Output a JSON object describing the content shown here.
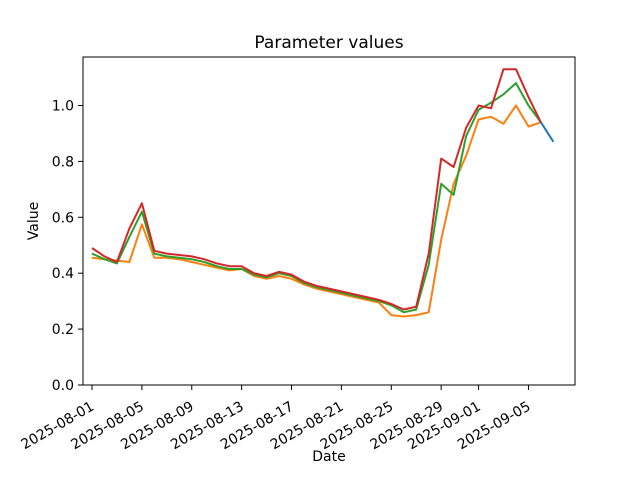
{
  "figure": {
    "title": "Parameter values",
    "xlabel": "Date",
    "ylabel": "Value"
  },
  "chart_data": {
    "type": "line",
    "title": "Parameter values",
    "xlabel": "Date",
    "ylabel": "Value",
    "grid": false,
    "legend": null,
    "ylim": [
      0.0,
      1.17
    ],
    "x_tick_rotation": 30,
    "x_ticks": [
      "2025-08-01",
      "2025-08-05",
      "2025-08-09",
      "2025-08-13",
      "2025-08-17",
      "2025-08-21",
      "2025-08-25",
      "2025-08-29",
      "2025-09-01",
      "2025-09-05"
    ],
    "y_ticks": [
      "0.0",
      "0.2",
      "0.4",
      "0.6",
      "0.8",
      "1.0"
    ],
    "x_dates": [
      "2025-08-01",
      "2025-08-02",
      "2025-08-03",
      "2025-08-04",
      "2025-08-05",
      "2025-08-06",
      "2025-08-07",
      "2025-08-08",
      "2025-08-09",
      "2025-08-10",
      "2025-08-11",
      "2025-08-12",
      "2025-08-13",
      "2025-08-14",
      "2025-08-15",
      "2025-08-16",
      "2025-08-17",
      "2025-08-18",
      "2025-08-19",
      "2025-08-20",
      "2025-08-21",
      "2025-08-22",
      "2025-08-23",
      "2025-08-24",
      "2025-08-25",
      "2025-08-26",
      "2025-08-27",
      "2025-08-28",
      "2025-08-29",
      "2025-08-30",
      "2025-08-31",
      "2025-09-01",
      "2025-09-02",
      "2025-09-03",
      "2025-09-04",
      "2025-09-05",
      "2025-09-06"
    ],
    "series": [
      {
        "name": "orange-series",
        "color": "#ff7f0e",
        "values": [
          0.455,
          0.45,
          0.445,
          0.44,
          0.575,
          0.455,
          0.455,
          0.45,
          0.44,
          0.43,
          0.42,
          0.41,
          0.415,
          0.39,
          0.38,
          0.39,
          0.38,
          0.36,
          0.345,
          0.335,
          0.325,
          0.315,
          0.305,
          0.295,
          0.25,
          0.245,
          0.25,
          0.26,
          0.52,
          0.72,
          0.82,
          0.95,
          0.96,
          0.935,
          1.0,
          0.925,
          0.94
        ]
      },
      {
        "name": "green-series",
        "color": "#2ca02c",
        "values": [
          0.47,
          0.45,
          0.435,
          0.53,
          0.62,
          0.47,
          0.46,
          0.455,
          0.45,
          0.44,
          0.425,
          0.415,
          0.415,
          0.395,
          0.385,
          0.4,
          0.39,
          0.365,
          0.35,
          0.34,
          0.33,
          0.32,
          0.31,
          0.3,
          0.285,
          0.26,
          0.27,
          0.43,
          0.72,
          0.68,
          0.89,
          0.985,
          1.01,
          1.04,
          1.08,
          1.0,
          0.94
        ]
      },
      {
        "name": "red-series",
        "color": "#d62728",
        "values": [
          0.49,
          0.46,
          0.44,
          0.56,
          0.65,
          0.48,
          0.47,
          0.465,
          0.46,
          0.45,
          0.435,
          0.425,
          0.425,
          0.4,
          0.39,
          0.405,
          0.395,
          0.37,
          0.355,
          0.345,
          0.335,
          0.325,
          0.315,
          0.305,
          0.29,
          0.27,
          0.28,
          0.47,
          0.81,
          0.78,
          0.92,
          1.0,
          0.99,
          1.13,
          1.13,
          1.03,
          0.94
        ]
      },
      {
        "name": "blue-series",
        "color": "#1f77b4",
        "dates": [
          "2025-09-06",
          "2025-09-07"
        ],
        "values": [
          0.94,
          0.87
        ]
      }
    ]
  }
}
